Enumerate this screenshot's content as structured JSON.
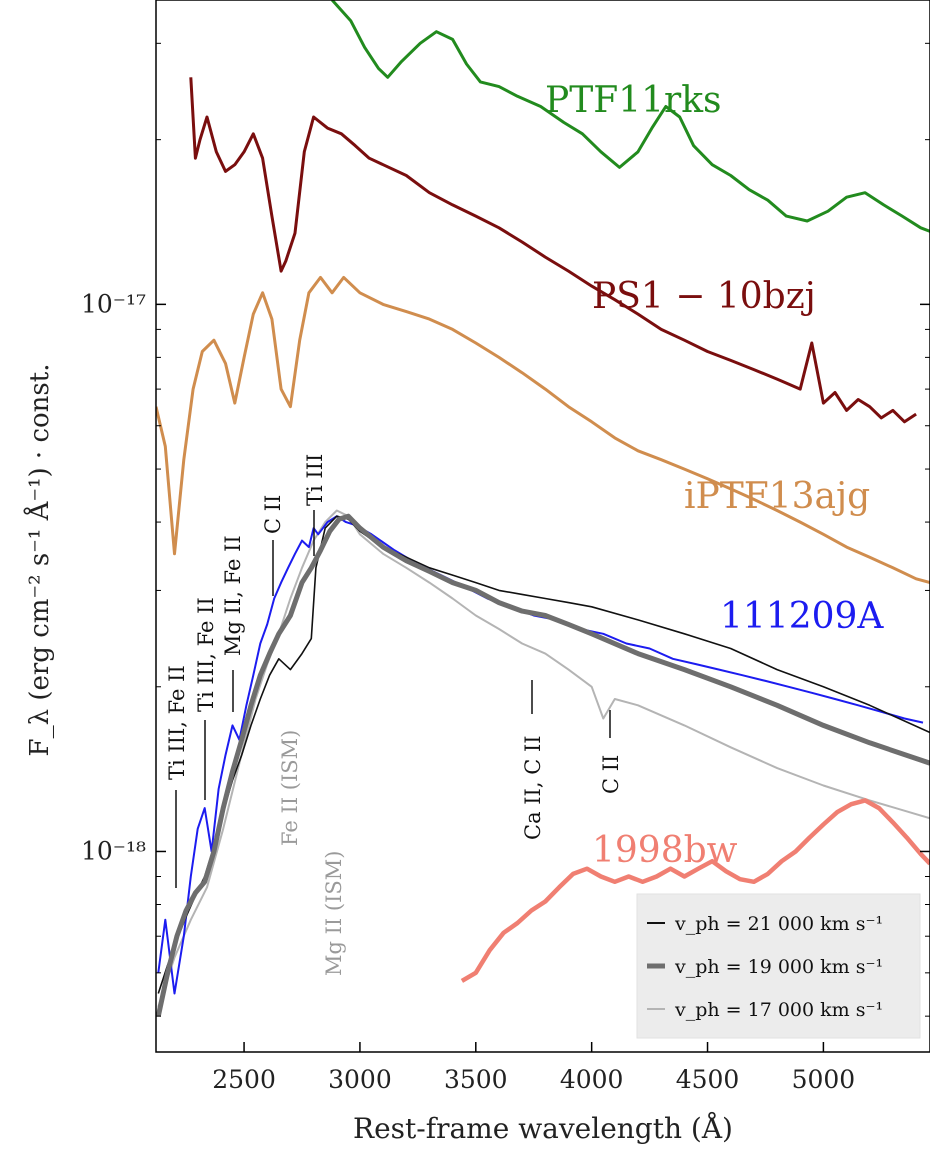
{
  "chart_data": {
    "type": "line",
    "xlabel": "Rest-frame wavelength (Å)",
    "ylabel": "F_λ (erg cm⁻² s⁻¹ Å⁻¹) · const.",
    "xlim": [
      2120,
      5460
    ],
    "ylim": [
      4.3e-19,
      3.6e-17
    ],
    "yscale": "log",
    "xticks": [
      2500,
      3000,
      3500,
      4000,
      4500,
      5000
    ],
    "xtick_labels": [
      "2500",
      "3000",
      "3500",
      "4000",
      "4500",
      "5000"
    ],
    "yticks": [
      1e-18,
      1e-17
    ],
    "ytick_labels": [
      "10⁻¹⁸",
      "10⁻¹⁷"
    ],
    "legend_position": "bottom-right",
    "series": [
      {
        "name": "PTF11rks",
        "color": "#228b1e",
        "x": [
          2880,
          2960,
          3020,
          3080,
          3120,
          3180,
          3260,
          3330,
          3400,
          3460,
          3520,
          3600,
          3680,
          3780,
          3880,
          3960,
          4040,
          4120,
          4200,
          4260,
          4320,
          4380,
          4440,
          4520,
          4600,
          4680,
          4760,
          4840,
          4930,
          5020,
          5100,
          5180,
          5260,
          5340,
          5420,
          5460
        ],
        "y": [
          3.6e-17,
          3.3e-17,
          2.95e-17,
          2.7e-17,
          2.6e-17,
          2.78e-17,
          3e-17,
          3.15e-17,
          3.05e-17,
          2.75e-17,
          2.55e-17,
          2.5e-17,
          2.4e-17,
          2.3e-17,
          2.15e-17,
          2.05e-17,
          1.9e-17,
          1.78e-17,
          1.9e-17,
          2.1e-17,
          2.3e-17,
          2.2e-17,
          1.95e-17,
          1.8e-17,
          1.72e-17,
          1.62e-17,
          1.55e-17,
          1.45e-17,
          1.42e-17,
          1.48e-17,
          1.57e-17,
          1.6e-17,
          1.52e-17,
          1.45e-17,
          1.38e-17,
          1.36e-17
        ]
      },
      {
        "name": "PS1 − 10bzj",
        "color": "#7a0e0e",
        "x": [
          2270,
          2290,
          2310,
          2340,
          2380,
          2420,
          2460,
          2500,
          2540,
          2580,
          2620,
          2660,
          2680,
          2720,
          2760,
          2800,
          2860,
          2920,
          2980,
          3040,
          3100,
          3200,
          3300,
          3400,
          3500,
          3600,
          3700,
          3800,
          3900,
          4000,
          4100,
          4200,
          4300,
          4400,
          4500,
          4600,
          4700,
          4800,
          4900,
          4950,
          5000,
          5050,
          5100,
          5150,
          5200,
          5250,
          5300,
          5350,
          5400
        ],
        "y": [
          2.6e-17,
          1.85e-17,
          2e-17,
          2.2e-17,
          1.9e-17,
          1.75e-17,
          1.8e-17,
          1.9e-17,
          2.05e-17,
          1.85e-17,
          1.45e-17,
          1.15e-17,
          1.2e-17,
          1.35e-17,
          1.9e-17,
          2.2e-17,
          2.1e-17,
          2.05e-17,
          1.95e-17,
          1.85e-17,
          1.8e-17,
          1.72e-17,
          1.6e-17,
          1.52e-17,
          1.45e-17,
          1.38e-17,
          1.3e-17,
          1.22e-17,
          1.15e-17,
          1.08e-17,
          1.02e-17,
          9.6e-18,
          9e-18,
          8.6e-18,
          8.2e-18,
          7.9e-18,
          7.6e-18,
          7.3e-18,
          7e-18,
          8.5e-18,
          6.6e-18,
          6.9e-18,
          6.4e-18,
          6.7e-18,
          6.5e-18,
          6.2e-18,
          6.4e-18,
          6.1e-18,
          6.3e-18
        ]
      },
      {
        "name": "iPTF13ajg",
        "color": "#d08d4e",
        "x": [
          2120,
          2160,
          2200,
          2240,
          2280,
          2320,
          2370,
          2420,
          2460,
          2500,
          2540,
          2580,
          2620,
          2660,
          2700,
          2740,
          2780,
          2830,
          2880,
          2930,
          3000,
          3100,
          3200,
          3300,
          3400,
          3500,
          3600,
          3700,
          3800,
          3900,
          4000,
          4100,
          4200,
          4300,
          4400,
          4500,
          4600,
          4700,
          4800,
          4900,
          5000,
          5100,
          5200,
          5300,
          5400,
          5460
        ],
        "y": [
          6.5e-18,
          5.5e-18,
          3.5e-18,
          5.2e-18,
          7e-18,
          8.2e-18,
          8.6e-18,
          7.8e-18,
          6.6e-18,
          8e-18,
          9.6e-18,
          1.05e-17,
          9.4e-18,
          7e-18,
          6.5e-18,
          8.6e-18,
          1.05e-17,
          1.12e-17,
          1.05e-17,
          1.12e-17,
          1.05e-17,
          1e-17,
          9.7e-18,
          9.4e-18,
          9e-18,
          8.5e-18,
          8e-18,
          7.5e-18,
          7e-18,
          6.5e-18,
          6.1e-18,
          5.7e-18,
          5.4e-18,
          5.2e-18,
          5e-18,
          4.8e-18,
          4.6e-18,
          4.4e-18,
          4.2e-18,
          4e-18,
          3.8e-18,
          3.6e-18,
          3.45e-18,
          3.3e-18,
          3.15e-18,
          3.1e-18
        ]
      },
      {
        "name": "111209A",
        "color": "#1c1cf0",
        "x": [
          2130,
          2160,
          2200,
          2240,
          2270,
          2300,
          2330,
          2360,
          2390,
          2420,
          2450,
          2480,
          2510,
          2540,
          2570,
          2600,
          2630,
          2660,
          2690,
          2720,
          2750,
          2780,
          2800,
          2820,
          2860,
          2900,
          2940,
          2980,
          3050,
          3150,
          3250,
          3350,
          3450,
          3550,
          3650,
          3750,
          3850,
          3950,
          4050,
          4150,
          4250,
          4350,
          4450,
          4550,
          4650,
          4750,
          4850,
          4950,
          5050,
          5150,
          5250,
          5350,
          5430
        ],
        "y": [
          6e-19,
          7.5e-19,
          5.5e-19,
          7e-19,
          9e-19,
          1.1e-18,
          1.2e-18,
          1e-18,
          1.3e-18,
          1.5e-18,
          1.7e-18,
          1.6e-18,
          1.85e-18,
          2.1e-18,
          2.4e-18,
          2.6e-18,
          2.9e-18,
          3.1e-18,
          3.3e-18,
          3.5e-18,
          3.7e-18,
          3.6e-18,
          3.9e-18,
          3.8e-18,
          4e-18,
          4.1e-18,
          4e-18,
          3.95e-18,
          3.8e-18,
          3.55e-18,
          3.35e-18,
          3.2e-18,
          3.05e-18,
          2.9e-18,
          2.8e-18,
          2.7e-18,
          2.65e-18,
          2.55e-18,
          2.5e-18,
          2.4e-18,
          2.35e-18,
          2.25e-18,
          2.2e-18,
          2.15e-18,
          2.1e-18,
          2.05e-18,
          2e-18,
          1.95e-18,
          1.9e-18,
          1.85e-18,
          1.8e-18,
          1.75e-18,
          1.72e-18
        ]
      },
      {
        "name": "1998bw",
        "color": "#f07f72",
        "x": [
          3440,
          3500,
          3560,
          3620,
          3680,
          3740,
          3800,
          3860,
          3920,
          3980,
          4040,
          4100,
          4160,
          4220,
          4280,
          4340,
          4400,
          4460,
          4520,
          4580,
          4640,
          4700,
          4760,
          4820,
          4880,
          4940,
          5000,
          5060,
          5120,
          5180,
          5240,
          5300,
          5360,
          5420,
          5460
        ],
        "y": [
          5.8e-19,
          6e-19,
          6.6e-19,
          7.1e-19,
          7.4e-19,
          7.8e-19,
          8.1e-19,
          8.6e-19,
          9.1e-19,
          9.3e-19,
          9e-19,
          8.8e-19,
          9e-19,
          8.8e-19,
          9e-19,
          9.3e-19,
          9e-19,
          9.3e-19,
          9.6e-19,
          9.2e-19,
          8.9e-19,
          8.8e-19,
          9.1e-19,
          9.6e-19,
          1e-18,
          1.06e-18,
          1.12e-18,
          1.18e-18,
          1.22e-18,
          1.24e-18,
          1.2e-18,
          1.13e-18,
          1.06e-18,
          9.9e-19,
          9.5e-19
        ]
      },
      {
        "name": "v_ph = 21 000 km s⁻¹",
        "color": "#111111",
        "x": [
          2130,
          2170,
          2210,
          2250,
          2290,
          2330,
          2370,
          2410,
          2450,
          2490,
          2530,
          2570,
          2610,
          2650,
          2700,
          2750,
          2790,
          2810,
          2850,
          2900,
          2950,
          3000,
          3100,
          3200,
          3300,
          3400,
          3500,
          3600,
          3700,
          3800,
          3900,
          4000,
          4200,
          4400,
          4600,
          4800,
          5000,
          5200,
          5460
        ],
        "y": [
          5.5e-19,
          6.2e-19,
          6.9e-19,
          7.6e-19,
          8.3e-19,
          9e-19,
          1.02e-18,
          1.18e-18,
          1.35e-18,
          1.5e-18,
          1.7e-18,
          1.9e-18,
          2.1e-18,
          2.25e-18,
          2.15e-18,
          2.3e-18,
          2.45e-18,
          3.3e-18,
          3.9e-18,
          4.1e-18,
          4.05e-18,
          3.85e-18,
          3.6e-18,
          3.45e-18,
          3.3e-18,
          3.2e-18,
          3.1e-18,
          3e-18,
          2.95e-18,
          2.9e-18,
          2.85e-18,
          2.8e-18,
          2.65e-18,
          2.5e-18,
          2.35e-18,
          2.15e-18,
          2e-18,
          1.85e-18,
          1.65e-18
        ]
      },
      {
        "name": "v_ph = 19 000 km s⁻¹",
        "color": "#6e6e6e",
        "x": [
          2130,
          2170,
          2210,
          2250,
          2290,
          2330,
          2370,
          2410,
          2450,
          2490,
          2530,
          2570,
          2610,
          2650,
          2700,
          2750,
          2790,
          2830,
          2870,
          2910,
          2950,
          3000,
          3100,
          3200,
          3300,
          3400,
          3500,
          3600,
          3700,
          3800,
          3900,
          4000,
          4200,
          4400,
          4600,
          4800,
          5000,
          5200,
          5460
        ],
        "y": [
          5e-19,
          6e-19,
          7e-19,
          7.8e-19,
          8.4e-19,
          8.8e-19,
          1e-18,
          1.2e-18,
          1.4e-18,
          1.6e-18,
          1.85e-18,
          2.1e-18,
          2.3e-18,
          2.5e-18,
          2.7e-18,
          3.1e-18,
          3.3e-18,
          3.55e-18,
          3.85e-18,
          4.05e-18,
          4.1e-18,
          3.9e-18,
          3.6e-18,
          3.4e-18,
          3.25e-18,
          3.1e-18,
          3e-18,
          2.85e-18,
          2.75e-18,
          2.7e-18,
          2.6e-18,
          2.5e-18,
          2.3e-18,
          2.15e-18,
          2e-18,
          1.85e-18,
          1.7e-18,
          1.58e-18,
          1.45e-18
        ]
      },
      {
        "name": "v_ph = 17 000 km s⁻¹",
        "color": "#b4b4b4",
        "x": [
          2130,
          2200,
          2270,
          2340,
          2410,
          2480,
          2550,
          2600,
          2650,
          2700,
          2750,
          2800,
          2850,
          2900,
          2950,
          3000,
          3100,
          3200,
          3300,
          3400,
          3500,
          3600,
          3700,
          3800,
          3900,
          4000,
          4050,
          4100,
          4200,
          4400,
          4600,
          4800,
          5000,
          5200,
          5460
        ],
        "y": [
          5.2e-19,
          6.4e-19,
          7.5e-19,
          8.6e-19,
          1.1e-18,
          1.45e-18,
          1.9e-18,
          2.2e-18,
          2.5e-18,
          2.9e-18,
          3.3e-18,
          3.7e-18,
          4e-18,
          4.2e-18,
          4.1e-18,
          3.8e-18,
          3.5e-18,
          3.3e-18,
          3.1e-18,
          2.9e-18,
          2.7e-18,
          2.55e-18,
          2.4e-18,
          2.3e-18,
          2.15e-18,
          2e-18,
          1.75e-18,
          1.9e-18,
          1.85e-18,
          1.7e-18,
          1.55e-18,
          1.42e-18,
          1.32e-18,
          1.24e-18,
          1.15e-18
        ]
      }
    ],
    "annotations": [
      {
        "text": "Ti III, Fe II",
        "x": 2200,
        "color": "#111111"
      },
      {
        "text": "Ti III, Fe II",
        "x": 2330,
        "color": "#111111"
      },
      {
        "text": "Mg II, Fe II",
        "x": 2440,
        "color": "#111111"
      },
      {
        "text": "C II",
        "x": 2630,
        "color": "#111111"
      },
      {
        "text": "Ti III",
        "x": 2800,
        "color": "#111111"
      },
      {
        "text": "Fe II (ISM)",
        "x": 2610,
        "color": "#9a9a9a"
      },
      {
        "text": "Mg II (ISM)",
        "x": 2800,
        "color": "#9a9a9a"
      },
      {
        "text": "Ca II, C II",
        "x": 3730,
        "color": "#111111"
      },
      {
        "text": "C II",
        "x": 4070,
        "color": "#111111"
      }
    ]
  }
}
